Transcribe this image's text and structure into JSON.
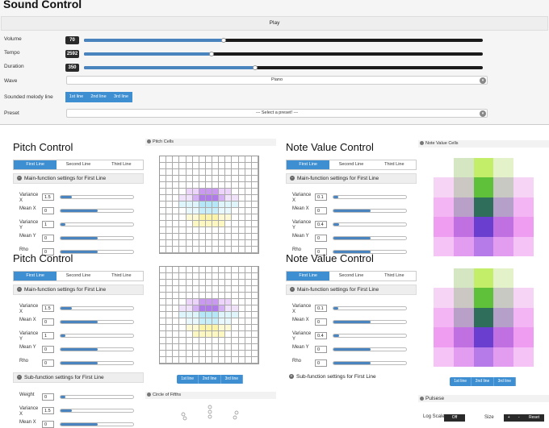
{
  "sound": {
    "title": "Sound Control",
    "play": "Play",
    "volume": {
      "label": "Volume",
      "value": "70",
      "pct": 0.35
    },
    "tempo": {
      "label": "Tempo",
      "value": "2592",
      "pct": 0.32
    },
    "duration": {
      "label": "Duration",
      "value": "350",
      "pct": 0.43
    },
    "wave": {
      "label": "Wave",
      "value": "Piano"
    },
    "melody": {
      "label": "Sounded melody line",
      "tabs": [
        "1st line",
        "2nd line",
        "3rd line"
      ]
    },
    "preset": {
      "label": "Preset",
      "value": "--- Select a preset! ---"
    }
  },
  "pitch": {
    "title": "Pitch Control",
    "tabs": [
      "First Line",
      "Second Line",
      "Third Line"
    ],
    "main_hdr": "Main-function settings for First Line",
    "sub_hdr": "Sub-function settings for First Line",
    "rows1": [
      {
        "l": "Variance X",
        "v": "1.5",
        "p": 0.15
      },
      {
        "l": "Mean X",
        "v": "0",
        "p": 0.5
      },
      {
        "l": "Variance Y",
        "v": "1",
        "p": 0.06
      },
      {
        "l": "Mean Y",
        "v": "0",
        "p": 0.5
      },
      {
        "l": "Rho",
        "v": "0",
        "p": 0.5
      }
    ],
    "rows2": [
      {
        "l": "Variance X",
        "v": "1.5",
        "p": 0.15
      },
      {
        "l": "Mean X",
        "v": "0",
        "p": 0.5
      },
      {
        "l": "Variance Y",
        "v": "1",
        "p": 0.06
      },
      {
        "l": "Mean Y",
        "v": "0",
        "p": 0.5
      },
      {
        "l": "Rho",
        "v": "0",
        "p": 0.5
      }
    ],
    "sub_rows": [
      {
        "l": "Weight",
        "v": "0",
        "p": 0
      },
      {
        "l": "Variance X",
        "v": "1.5",
        "p": 0.15
      },
      {
        "l": "Mean X",
        "v": "0",
        "p": 0.5
      }
    ],
    "cells_title": "Pitch Cells",
    "lines": [
      "1st line",
      "2nd line",
      "3rd line"
    ],
    "circle": "Circle of Fifths"
  },
  "note": {
    "title": "Note Value Control",
    "tabs": [
      "First Line",
      "Second Line",
      "Third Line"
    ],
    "main_hdr": "Main-function settings for First Line",
    "sub_hdr": "Sub-function settings for First Line",
    "rows1": [
      {
        "l": "Variance X",
        "v": "0.1",
        "p": 0.02
      },
      {
        "l": "Mean X",
        "v": "0",
        "p": 0.5
      },
      {
        "l": "Variance Y",
        "v": "0.4",
        "p": 0.08
      },
      {
        "l": "Mean Y",
        "v": "0",
        "p": 0.5
      },
      {
        "l": "Rho",
        "v": "0",
        "p": 0.5
      }
    ],
    "rows2": [
      {
        "l": "Variance X",
        "v": "0.1",
        "p": 0.02
      },
      {
        "l": "Mean X",
        "v": "0",
        "p": 0.5
      },
      {
        "l": "Variance Y",
        "v": "0.4",
        "p": 0.08
      },
      {
        "l": "Mean Y",
        "v": "0",
        "p": 0.5
      },
      {
        "l": "Rho",
        "v": "0",
        "p": 0.5
      }
    ],
    "cells_title": "Note Value Cells",
    "lines": [
      "1st line",
      "2nd line",
      "3rd line"
    ],
    "pulse": {
      "title": "Pulsese",
      "log": "Log Scale",
      "off": "Off",
      "size": "Size",
      "plus": "+",
      "minus": "-",
      "reset": "Reset"
    }
  },
  "colors": {
    "accent": "#3d8fd2",
    "dark_track": "#1b1b1b"
  }
}
